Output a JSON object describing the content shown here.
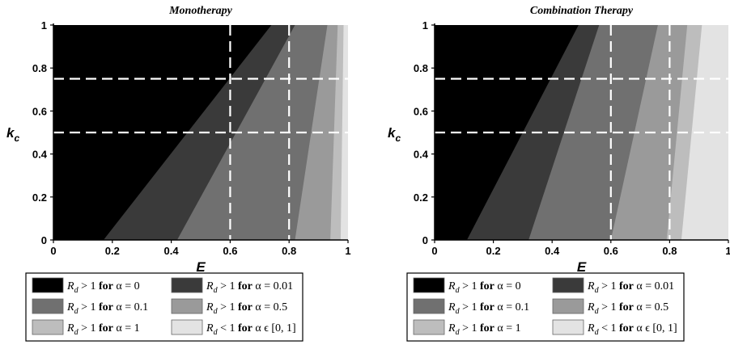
{
  "chart_data": [
    {
      "type": "area",
      "title": "Monotherapy",
      "xlabel": "E",
      "ylabel": "k_c",
      "xlim": [
        0,
        1
      ],
      "ylim": [
        0,
        1
      ],
      "xticks": [
        "0",
        "0.2",
        "0.4",
        "0.6",
        "0.8",
        "1"
      ],
      "yticks": [
        "0",
        "0.2",
        "0.4",
        "0.6",
        "0.8",
        "1"
      ],
      "series": [
        {
          "name": "α = 0",
          "color": "#000000",
          "boundary": [
            [
              0.0,
              0.74
            ],
            [
              1.0,
              0.17
            ]
          ]
        },
        {
          "name": "α = 0.01",
          "color": "#3a3a3a",
          "boundary": [
            [
              0.0,
              0.82
            ],
            [
              1.0,
              0.42
            ]
          ]
        },
        {
          "name": "α = 0.1",
          "color": "#707070",
          "boundary": [
            [
              0.0,
              0.93
            ],
            [
              1.0,
              0.82
            ]
          ]
        },
        {
          "name": "α = 0.5",
          "color": "#9a9a9a",
          "boundary": [
            [
              0.0,
              0.965
            ],
            [
              1.0,
              0.94
            ]
          ]
        },
        {
          "name": "α = 1",
          "color": "#bdbdbd",
          "boundary": [
            [
              0.0,
              0.985
            ],
            [
              1.0,
              0.975
            ]
          ]
        },
        {
          "name": "α ∈ [0, 1]",
          "color": "#e3e3e3",
          "boundary": [
            [
              0.0,
              1.0
            ],
            [
              1.0,
              1.0
            ]
          ]
        }
      ],
      "reference_lines": {
        "vertical_E": [
          0.6,
          0.8
        ],
        "horizontal_kc": [
          0.5,
          0.75
        ]
      }
    },
    {
      "type": "area",
      "title": "Combination Therapy",
      "xlabel": "E",
      "ylabel": "k_c",
      "xlim": [
        0,
        1
      ],
      "ylim": [
        0,
        1
      ],
      "xticks": [
        "0",
        "0.2",
        "0.4",
        "0.6",
        "0.8",
        "1"
      ],
      "yticks": [
        "0",
        "0.2",
        "0.4",
        "0.6",
        "0.8",
        "1"
      ],
      "series": [
        {
          "name": "α = 0",
          "color": "#000000",
          "boundary": [
            [
              0.0,
              0.49
            ],
            [
              1.0,
              0.11
            ]
          ]
        },
        {
          "name": "α = 0.01",
          "color": "#3a3a3a",
          "boundary": [
            [
              0.0,
              0.56
            ],
            [
              1.0,
              0.32
            ]
          ]
        },
        {
          "name": "α = 0.1",
          "color": "#707070",
          "boundary": [
            [
              0.0,
              0.76
            ],
            [
              1.0,
              0.6
            ]
          ]
        },
        {
          "name": "α = 0.5",
          "color": "#9a9a9a",
          "boundary": [
            [
              0.0,
              0.86
            ],
            [
              1.0,
              0.79
            ]
          ]
        },
        {
          "name": "α = 1",
          "color": "#bdbdbd",
          "boundary": [
            [
              0.0,
              0.91
            ],
            [
              1.0,
              0.84
            ]
          ]
        },
        {
          "name": "α ∈ [0, 1]",
          "color": "#e3e3e3",
          "boundary": [
            [
              0.0,
              1.0
            ],
            [
              1.0,
              1.0
            ]
          ]
        }
      ],
      "reference_lines": {
        "vertical_E": [
          0.6,
          0.8
        ],
        "horizontal_kc": [
          0.5,
          0.75
        ]
      }
    }
  ],
  "legend": {
    "items": [
      {
        "prefix": "R",
        "sub": "d",
        "rel": " > 1 ",
        "for": "for",
        "alpha": " α = 0",
        "color": "#000000"
      },
      {
        "prefix": "R",
        "sub": "d",
        "rel": " > 1 ",
        "for": "for",
        "alpha": " α = 0.01",
        "color": "#3a3a3a"
      },
      {
        "prefix": "R",
        "sub": "d",
        "rel": " > 1 ",
        "for": "for",
        "alpha": " α = 0.1",
        "color": "#707070"
      },
      {
        "prefix": "R",
        "sub": "d",
        "rel": " > 1 ",
        "for": "for",
        "alpha": " α = 0.5",
        "color": "#9a9a9a"
      },
      {
        "prefix": "R",
        "sub": "d",
        "rel": " > 1 ",
        "for": "for",
        "alpha": " α = 1",
        "color": "#bdbdbd"
      },
      {
        "prefix": "R",
        "sub": "d",
        "rel": " < 1 ",
        "for": "for",
        "alpha": " α ϵ [0, 1]",
        "color": "#e3e3e3"
      }
    ]
  }
}
